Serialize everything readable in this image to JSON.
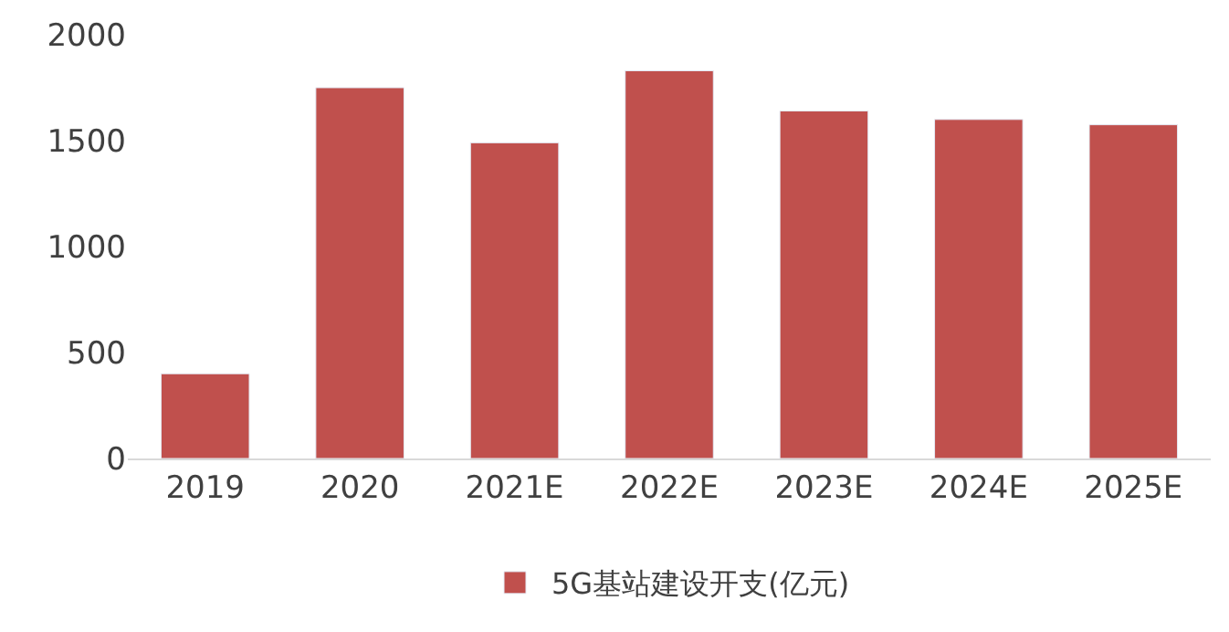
{
  "chart_data": {
    "type": "bar",
    "categories": [
      "2019",
      "2020",
      "2021E",
      "2022E",
      "2023E",
      "2024E",
      "2025E"
    ],
    "series": [
      {
        "name": "5G基站建设开支(亿元)",
        "color": "#c0504d",
        "values": [
          400,
          1750,
          1490,
          1830,
          1640,
          1600,
          1575
        ]
      }
    ],
    "ylim": [
      0,
      2000
    ],
    "yticks": [
      0,
      500,
      1000,
      1500,
      2000
    ],
    "grid": false,
    "legend": "bottom"
  }
}
